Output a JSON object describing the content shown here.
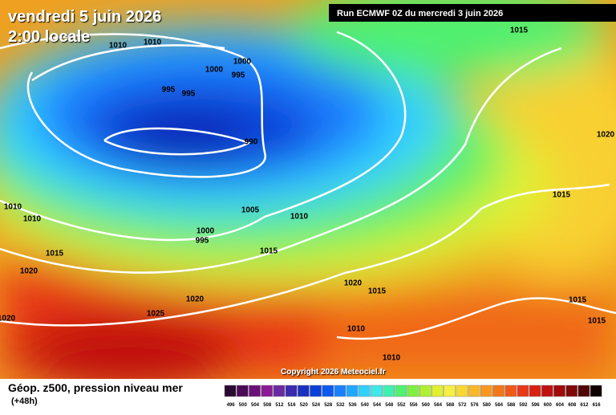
{
  "header": {
    "date": "vendredi 5 juin 2026",
    "time": "2:00 locale",
    "run": "Run ECMWF 0Z du mercredi 3 juin 2026"
  },
  "isobar_labels": [
    "1010",
    "1010",
    "1000",
    "1000",
    "995",
    "995",
    "995",
    "990",
    "1015",
    "1020",
    "1015",
    "1010",
    "1010",
    "1005",
    "1010",
    "1000",
    "995",
    "1015",
    "1015",
    "1020",
    "1020",
    "1015",
    "1020",
    "1025",
    "1020",
    "1015",
    "1015",
    "1010",
    "1010"
  ],
  "copyright": "Copyright 2026 Meteociel.fr",
  "footer": {
    "title": "Géop. z500, pression niveau mer",
    "lead": "(+48h)"
  },
  "legend": {
    "values": [
      496,
      500,
      504,
      508,
      512,
      516,
      520,
      524,
      528,
      532,
      536,
      540,
      544,
      548,
      552,
      556,
      560,
      564,
      568,
      572,
      576,
      580,
      584,
      588,
      592,
      596,
      600,
      604,
      608,
      612,
      616
    ],
    "colors": [
      "#2a0a30",
      "#4a0a55",
      "#6a1078",
      "#8a1a95",
      "#6a2aa0",
      "#3a2ab0",
      "#1a30c0",
      "#0a40d8",
      "#0a5af0",
      "#1a80ff",
      "#20a8ff",
      "#30d0ff",
      "#40e8e8",
      "#40f0b0",
      "#50f070",
      "#80f040",
      "#b0f030",
      "#e0f030",
      "#f8f040",
      "#f8d830",
      "#f8b828",
      "#f89820",
      "#f07818",
      "#f05818",
      "#e83818",
      "#d82010",
      "#c01010",
      "#a00a0a",
      "#800808",
      "#500404",
      "#100000"
    ]
  }
}
